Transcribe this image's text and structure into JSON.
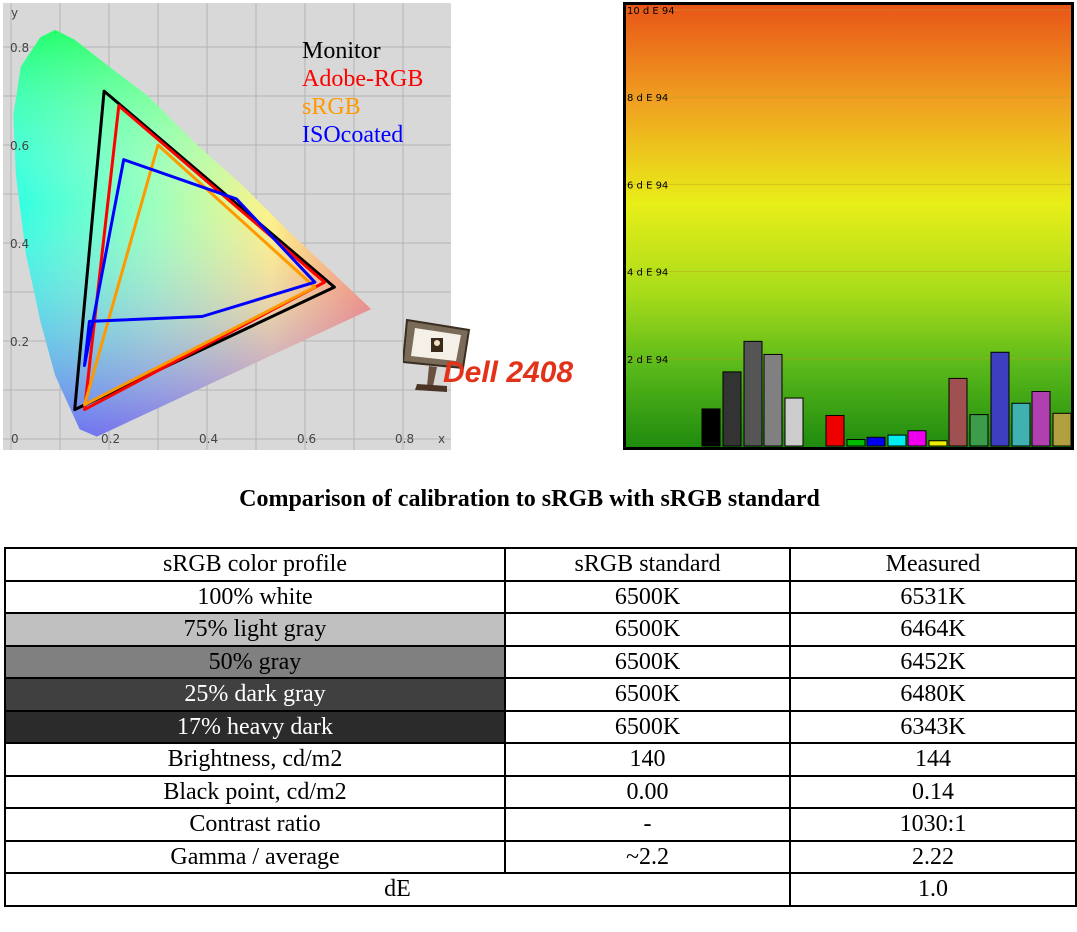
{
  "chart_data": [
    {
      "type": "scatter",
      "title": "",
      "xlabel": "x",
      "ylabel": "y",
      "xlim": [
        0,
        0.9
      ],
      "ylim": [
        0,
        0.85
      ],
      "x_ticks": [
        "0",
        "0.2",
        "0.4",
        "0.6",
        "0.8"
      ],
      "y_ticks": [
        "0.2",
        "0.4",
        "0.6",
        "0.8"
      ],
      "grid": true,
      "legend_position": "top-right",
      "series": [
        {
          "name": "Monitor",
          "color": "#000000",
          "points": [
            [
              0.13,
              0.06
            ],
            [
              0.19,
              0.71
            ],
            [
              0.66,
              0.31
            ]
          ]
        },
        {
          "name": "Adobe-RGB",
          "color": "#ff0000",
          "points": [
            [
              0.15,
              0.06
            ],
            [
              0.22,
              0.68
            ],
            [
              0.64,
              0.32
            ]
          ]
        },
        {
          "name": "sRGB",
          "color": "#ff9900",
          "points": [
            [
              0.15,
              0.07
            ],
            [
              0.3,
              0.6
            ],
            [
              0.62,
              0.31
            ]
          ]
        },
        {
          "name": "ISOcoated",
          "color": "#0000ff",
          "points": [
            [
              0.15,
              0.15
            ],
            [
              0.23,
              0.57
            ],
            [
              0.46,
              0.49
            ],
            [
              0.62,
              0.32
            ],
            [
              0.39,
              0.25
            ],
            [
              0.16,
              0.24
            ]
          ]
        }
      ]
    },
    {
      "type": "bar",
      "title": "",
      "ylabel": "",
      "ylim": [
        0,
        10
      ],
      "y_ticks": [
        "2 d E 94",
        "4 d E 94",
        "6 d E 94",
        "8 d E 94",
        "10 d E 94"
      ],
      "bar_colors": [
        "#000000",
        "#333333",
        "#555555",
        "#808080",
        "#cccccc",
        "#ee0000",
        "#00bb00",
        "#0000ee",
        "#00eeee",
        "#ee00ee",
        "#eeee00",
        "#a05050",
        "#3c9c4c",
        "#3e3ec0",
        "#40b0b0",
        "#b040b0",
        "#b0a040"
      ],
      "values": [
        0.85,
        1.7,
        2.4,
        2.1,
        1.1,
        0.7,
        0.15,
        0.2,
        0.25,
        0.35,
        0.12,
        1.55,
        0.72,
        2.15,
        0.98,
        1.25,
        0.75
      ]
    }
  ],
  "logo": {
    "brand": "Dell 2408"
  },
  "caption": "Comparison of calibration to sRGB with sRGB standard",
  "table": {
    "headers": [
      "sRGB color profile",
      "sRGB standard",
      "Measured"
    ],
    "rows": [
      {
        "label": "100% white",
        "standard": "6500K",
        "measured": "6531K",
        "bg": "#ffffff",
        "fg": "#000000"
      },
      {
        "label": "75% light gray",
        "standard": "6500K",
        "measured": "6464K",
        "bg": "#c0c0c0",
        "fg": "#000000"
      },
      {
        "label": "50% gray",
        "standard": "6500K",
        "measured": "6452K",
        "bg": "#808080",
        "fg": "#000000"
      },
      {
        "label": "25% dark gray",
        "standard": "6500K",
        "measured": "6480K",
        "bg": "#404040",
        "fg": "#ffffff"
      },
      {
        "label": "17% heavy dark",
        "standard": "6500K",
        "measured": "6343K",
        "bg": "#2b2b2b",
        "fg": "#ffffff"
      },
      {
        "label": "Brightness, cd/m2",
        "standard": "140",
        "measured": "144",
        "bg": "#ffffff",
        "fg": "#000000"
      },
      {
        "label": "Black point, cd/m2",
        "standard": "0.00",
        "measured": "0.14",
        "bg": "#ffffff",
        "fg": "#000000"
      },
      {
        "label": "Contrast ratio",
        "standard": "-",
        "measured": "1030:1",
        "bg": "#ffffff",
        "fg": "#000000"
      },
      {
        "label": "Gamma / average",
        "standard": "~2.2",
        "measured": "2.22",
        "bg": "#ffffff",
        "fg": "#000000"
      }
    ],
    "last_row": {
      "label": "dE",
      "measured": "1.0"
    }
  }
}
